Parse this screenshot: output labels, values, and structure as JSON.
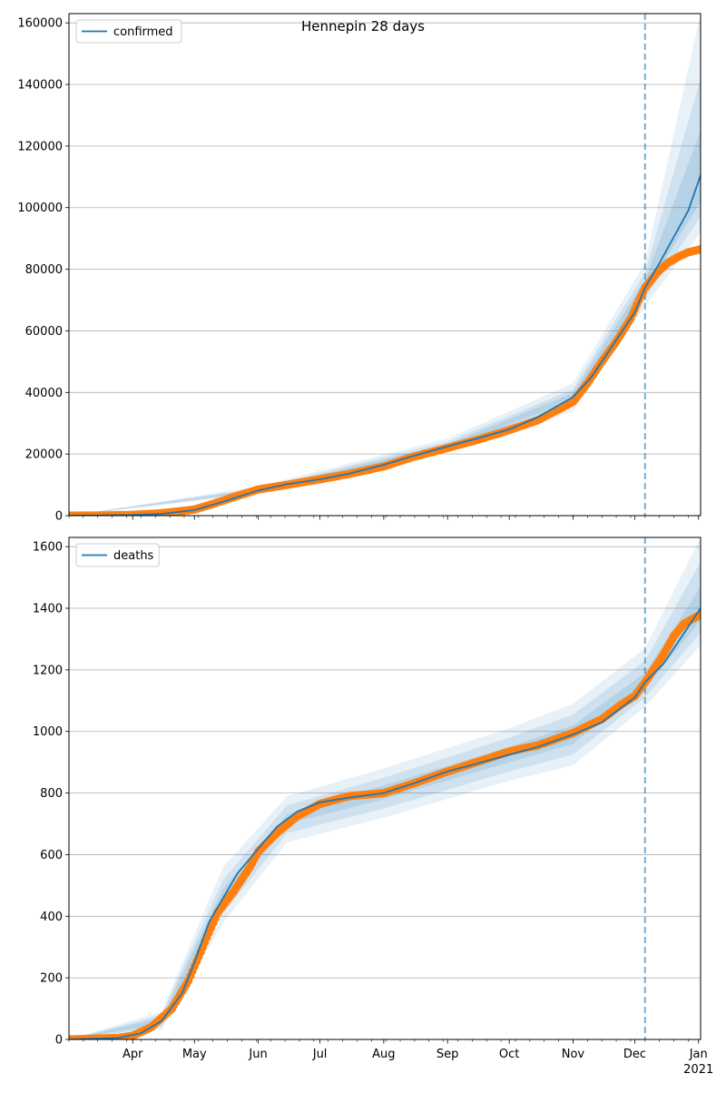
{
  "figure": {
    "title": "Hennepin 28 days"
  },
  "colors": {
    "model": "#1f77b4",
    "observed": "#ff7f0e",
    "band": "#1f77b4",
    "forecast_line": "#1f77b4",
    "grid": "#b0b0b0"
  },
  "x_axis": {
    "month_labels": [
      "Apr",
      "May",
      "Jun",
      "Jul",
      "Aug",
      "Sep",
      "Oct",
      "Nov",
      "Dec",
      "Jan"
    ],
    "month_dates": [
      "2020-04-01",
      "2020-05-01",
      "2020-06-01",
      "2020-07-01",
      "2020-08-01",
      "2020-09-01",
      "2020-10-01",
      "2020-11-01",
      "2020-12-01",
      "2021-01-01"
    ],
    "year_label": "2021",
    "start": "2020-03-01",
    "end": "2021-01-02",
    "forecast_start": "2020-12-06"
  },
  "chart_data": [
    {
      "type": "line",
      "legend": [
        "confirmed"
      ],
      "legend_placement": "top-left",
      "grid": "horizontal",
      "ylim": [
        0,
        163000
      ],
      "yticks": [
        0,
        20000,
        40000,
        60000,
        80000,
        100000,
        120000,
        140000,
        160000
      ],
      "series": [
        {
          "name": "confirmed",
          "kind": "model",
          "points": [
            [
              "2020-03-01",
              0
            ],
            [
              "2020-04-01",
              200
            ],
            [
              "2020-04-15",
              600
            ],
            [
              "2020-05-01",
              1800
            ],
            [
              "2020-05-15",
              4500
            ],
            [
              "2020-06-01",
              8200
            ],
            [
              "2020-06-15",
              10200
            ],
            [
              "2020-07-01",
              11800
            ],
            [
              "2020-07-15",
              13600
            ],
            [
              "2020-08-01",
              16500
            ],
            [
              "2020-08-15",
              19300
            ],
            [
              "2020-09-01",
              22500
            ],
            [
              "2020-09-15",
              25000
            ],
            [
              "2020-10-01",
              28000
            ],
            [
              "2020-10-15",
              32000
            ],
            [
              "2020-11-01",
              38500
            ],
            [
              "2020-11-10",
              45000
            ],
            [
              "2020-11-20",
              55000
            ],
            [
              "2020-12-01",
              66000
            ],
            [
              "2020-12-06",
              74000
            ],
            [
              "2020-12-13",
              82000
            ],
            [
              "2020-12-20",
              90500
            ],
            [
              "2020-12-27",
              99000
            ],
            [
              "2021-01-02",
              110500
            ]
          ]
        },
        {
          "kind": "observed",
          "points": [
            [
              "2020-03-01",
              0
            ],
            [
              "2020-03-15",
              50
            ],
            [
              "2020-04-01",
              250
            ],
            [
              "2020-04-15",
              800
            ],
            [
              "2020-04-25",
              1500
            ],
            [
              "2020-05-01",
              2000
            ],
            [
              "2020-05-10",
              3800
            ],
            [
              "2020-05-20",
              6000
            ],
            [
              "2020-06-01",
              8500
            ],
            [
              "2020-06-15",
              10000
            ],
            [
              "2020-07-01",
              11800
            ],
            [
              "2020-07-15",
              13500
            ],
            [
              "2020-08-01",
              16000
            ],
            [
              "2020-08-15",
              19000
            ],
            [
              "2020-09-01",
              22000
            ],
            [
              "2020-09-15",
              24500
            ],
            [
              "2020-10-01",
              27800
            ],
            [
              "2020-10-15",
              31000
            ],
            [
              "2020-11-01",
              37000
            ],
            [
              "2020-11-08",
              43000
            ],
            [
              "2020-11-15",
              50000
            ],
            [
              "2020-11-22",
              56500
            ],
            [
              "2020-11-29",
              64000
            ],
            [
              "2020-12-03",
              70000
            ],
            [
              "2020-12-06",
              74000
            ],
            [
              "2020-12-12",
              79000
            ],
            [
              "2020-12-17",
              82000
            ],
            [
              "2020-12-22",
              84000
            ],
            [
              "2020-12-27",
              85500
            ],
            [
              "2021-01-02",
              86500
            ]
          ]
        }
      ],
      "bands": [
        {
          "level": "outer",
          "lower": [
            [
              "2020-03-01",
              0
            ],
            [
              "2020-06-01",
              7000
            ],
            [
              "2020-09-01",
              20500
            ],
            [
              "2020-11-01",
              34000
            ],
            [
              "2020-12-06",
              68000
            ],
            [
              "2021-01-02",
              92000
            ]
          ],
          "upper": [
            [
              "2020-03-01",
              0
            ],
            [
              "2020-06-01",
              9500
            ],
            [
              "2020-09-01",
              25000
            ],
            [
              "2020-11-01",
              43000
            ],
            [
              "2020-12-06",
              82000
            ],
            [
              "2021-01-02",
              163000
            ]
          ]
        },
        {
          "level": "middle",
          "lower": [
            [
              "2020-03-01",
              0
            ],
            [
              "2020-06-01",
              7500
            ],
            [
              "2020-09-01",
              21300
            ],
            [
              "2020-11-01",
              36000
            ],
            [
              "2020-12-06",
              70500
            ],
            [
              "2021-01-02",
              97000
            ]
          ],
          "upper": [
            [
              "2020-03-01",
              0
            ],
            [
              "2020-06-01",
              9000
            ],
            [
              "2020-09-01",
              24000
            ],
            [
              "2020-11-01",
              41000
            ],
            [
              "2020-12-06",
              79000
            ],
            [
              "2021-01-02",
              142000
            ]
          ]
        },
        {
          "level": "inner",
          "lower": [
            [
              "2020-03-01",
              0
            ],
            [
              "2020-06-01",
              7900
            ],
            [
              "2020-09-01",
              21900
            ],
            [
              "2020-11-01",
              37500
            ],
            [
              "2020-12-06",
              72500
            ],
            [
              "2021-01-02",
              102000
            ]
          ],
          "upper": [
            [
              "2020-03-01",
              0
            ],
            [
              "2020-06-01",
              8600
            ],
            [
              "2020-09-01",
              23200
            ],
            [
              "2020-11-01",
              39800
            ],
            [
              "2020-12-06",
              76500
            ],
            [
              "2021-01-02",
              125000
            ]
          ]
        }
      ]
    },
    {
      "type": "line",
      "legend": [
        "deaths"
      ],
      "legend_placement": "top-left",
      "grid": "horizontal",
      "ylim": [
        0,
        1630
      ],
      "yticks": [
        0,
        200,
        400,
        600,
        800,
        1000,
        1200,
        1400,
        1600
      ],
      "series": [
        {
          "name": "deaths",
          "kind": "model",
          "points": [
            [
              "2020-03-01",
              0
            ],
            [
              "2020-03-25",
              5
            ],
            [
              "2020-04-05",
              20
            ],
            [
              "2020-04-15",
              60
            ],
            [
              "2020-04-25",
              150
            ],
            [
              "2020-05-01",
              250
            ],
            [
              "2020-05-08",
              380
            ],
            [
              "2020-05-15",
              460
            ],
            [
              "2020-05-22",
              540
            ],
            [
              "2020-06-01",
              620
            ],
            [
              "2020-06-10",
              690
            ],
            [
              "2020-06-20",
              740
            ],
            [
              "2020-07-01",
              770
            ],
            [
              "2020-07-15",
              785
            ],
            [
              "2020-08-01",
              800
            ],
            [
              "2020-08-15",
              830
            ],
            [
              "2020-09-01",
              870
            ],
            [
              "2020-09-15",
              895
            ],
            [
              "2020-10-01",
              925
            ],
            [
              "2020-10-15",
              950
            ],
            [
              "2020-11-01",
              990
            ],
            [
              "2020-11-15",
              1030
            ],
            [
              "2020-12-01",
              1110
            ],
            [
              "2020-12-06",
              1160
            ],
            [
              "2020-12-15",
              1220
            ],
            [
              "2020-12-25",
              1320
            ],
            [
              "2021-01-02",
              1400
            ]
          ]
        },
        {
          "kind": "observed",
          "points": [
            [
              "2020-03-01",
              0
            ],
            [
              "2020-03-25",
              5
            ],
            [
              "2020-04-01",
              12
            ],
            [
              "2020-04-10",
              40
            ],
            [
              "2020-04-20",
              100
            ],
            [
              "2020-04-28",
              190
            ],
            [
              "2020-05-05",
              300
            ],
            [
              "2020-05-12",
              410
            ],
            [
              "2020-05-20",
              480
            ],
            [
              "2020-05-28",
              560
            ],
            [
              "2020-06-01",
              610
            ],
            [
              "2020-06-10",
              670
            ],
            [
              "2020-06-20",
              725
            ],
            [
              "2020-07-01",
              765
            ],
            [
              "2020-07-15",
              790
            ],
            [
              "2020-08-01",
              800
            ],
            [
              "2020-08-15",
              830
            ],
            [
              "2020-09-01",
              870
            ],
            [
              "2020-09-15",
              900
            ],
            [
              "2020-10-01",
              935
            ],
            [
              "2020-10-15",
              955
            ],
            [
              "2020-11-01",
              995
            ],
            [
              "2020-11-15",
              1040
            ],
            [
              "2020-11-25",
              1090
            ],
            [
              "2020-12-01",
              1115
            ],
            [
              "2020-12-06",
              1160
            ],
            [
              "2020-12-10",
              1200
            ],
            [
              "2020-12-15",
              1250
            ],
            [
              "2020-12-20",
              1310
            ],
            [
              "2020-12-25",
              1350
            ],
            [
              "2021-01-02",
              1380
            ]
          ]
        }
      ],
      "bands": [
        {
          "level": "outer",
          "lower": [
            [
              "2020-03-01",
              0
            ],
            [
              "2020-04-15",
              30
            ],
            [
              "2020-05-15",
              380
            ],
            [
              "2020-06-15",
              640
            ],
            [
              "2020-08-01",
              720
            ],
            [
              "2020-10-01",
              840
            ],
            [
              "2020-11-01",
              890
            ],
            [
              "2020-12-06",
              1080
            ],
            [
              "2021-01-02",
              1280
            ]
          ],
          "upper": [
            [
              "2020-03-01",
              0
            ],
            [
              "2020-04-15",
              90
            ],
            [
              "2020-05-15",
              560
            ],
            [
              "2020-06-15",
              790
            ],
            [
              "2020-08-01",
              880
            ],
            [
              "2020-10-01",
              1010
            ],
            [
              "2020-11-01",
              1090
            ],
            [
              "2020-12-06",
              1270
            ],
            [
              "2021-01-02",
              1630
            ]
          ]
        },
        {
          "level": "middle",
          "lower": [
            [
              "2020-03-01",
              0
            ],
            [
              "2020-04-15",
              40
            ],
            [
              "2020-05-15",
              410
            ],
            [
              "2020-06-15",
              670
            ],
            [
              "2020-08-01",
              750
            ],
            [
              "2020-10-01",
              870
            ],
            [
              "2020-11-01",
              925
            ],
            [
              "2020-12-06",
              1110
            ],
            [
              "2021-01-02",
              1320
            ]
          ],
          "upper": [
            [
              "2020-03-01",
              0
            ],
            [
              "2020-04-15",
              80
            ],
            [
              "2020-05-15",
              520
            ],
            [
              "2020-06-15",
              760
            ],
            [
              "2020-08-01",
              850
            ],
            [
              "2020-10-01",
              980
            ],
            [
              "2020-11-01",
              1055
            ],
            [
              "2020-12-06",
              1230
            ],
            [
              "2021-01-02",
              1550
            ]
          ]
        },
        {
          "level": "inner",
          "lower": [
            [
              "2020-03-01",
              0
            ],
            [
              "2020-04-15",
              50
            ],
            [
              "2020-05-15",
              440
            ],
            [
              "2020-06-15",
              700
            ],
            [
              "2020-08-01",
              780
            ],
            [
              "2020-10-01",
              900
            ],
            [
              "2020-11-01",
              960
            ],
            [
              "2020-12-06",
              1140
            ],
            [
              "2021-01-02",
              1360
            ]
          ],
          "upper": [
            [
              "2020-03-01",
              0
            ],
            [
              "2020-04-15",
              70
            ],
            [
              "2020-05-15",
              490
            ],
            [
              "2020-06-15",
              730
            ],
            [
              "2020-08-01",
              825
            ],
            [
              "2020-10-01",
              950
            ],
            [
              "2020-11-01",
              1020
            ],
            [
              "2020-12-06",
              1190
            ],
            [
              "2021-01-02",
              1470
            ]
          ]
        }
      ]
    }
  ]
}
